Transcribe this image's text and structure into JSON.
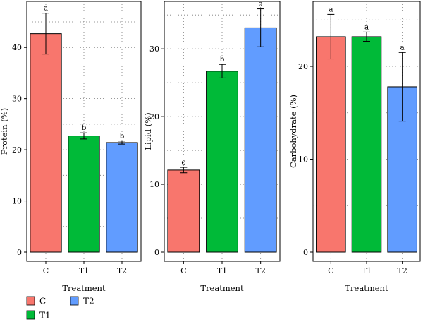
{
  "chart_data": [
    {
      "type": "bar",
      "categories": [
        "C",
        "T1",
        "T2"
      ],
      "values": [
        42.7,
        22.7,
        21.4
      ],
      "errors": [
        4.0,
        0.6,
        0.3
      ],
      "significance": [
        "a",
        "b",
        "b"
      ],
      "xlabel": "Treatment",
      "ylabel": "Protein (%)",
      "ylim": [
        0,
        49
      ],
      "yticks": [
        0,
        10,
        20,
        30,
        40
      ],
      "grid": true
    },
    {
      "type": "bar",
      "categories": [
        "C",
        "T1",
        "T2"
      ],
      "values": [
        12.1,
        26.7,
        33.1
      ],
      "errors": [
        0.4,
        1.0,
        2.8
      ],
      "significance": [
        "c",
        "b",
        "a"
      ],
      "xlabel": "Treatment",
      "ylabel": "Lipid (%)",
      "ylim": [
        0,
        37
      ],
      "yticks": [
        0,
        10,
        20,
        30
      ],
      "grid": true
    },
    {
      "type": "bar",
      "categories": [
        "C",
        "T1",
        "T2"
      ],
      "values": [
        23.2,
        23.2,
        17.8
      ],
      "errors": [
        2.4,
        0.5,
        3.7
      ],
      "significance": [
        "a",
        "a",
        "a"
      ],
      "xlabel": "Treatment",
      "ylabel": "Carbohydrate (%)",
      "ylim": [
        0,
        27
      ],
      "yticks": [
        0,
        10,
        20
      ],
      "grid": true
    }
  ],
  "legend": {
    "placement": "bottom-left",
    "items": [
      {
        "label": "C",
        "color": "#F8766D"
      },
      {
        "label": "T1",
        "color": "#00BA38"
      },
      {
        "label": "T2",
        "color": "#619CFF"
      }
    ]
  }
}
